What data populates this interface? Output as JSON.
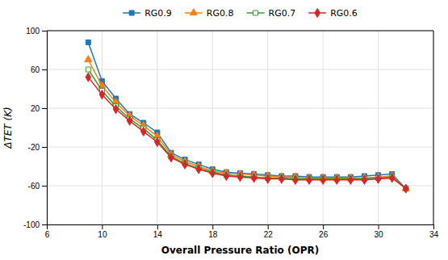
{
  "chart_data": {
    "type": "line",
    "x_label": "Overall Pressure Ratio (OPR)",
    "y_label": "ΔTET  (K)",
    "xlim": [
      6,
      34
    ],
    "ylim": [
      -100,
      100
    ],
    "xticks": [
      6,
      10,
      14,
      18,
      22,
      26,
      30,
      34
    ],
    "yticks": [
      -100,
      -60,
      -20,
      20,
      60,
      100
    ],
    "grid": true,
    "legend": "top",
    "x": [
      9,
      10,
      11,
      12,
      13,
      14,
      15,
      16,
      17,
      18,
      19,
      20,
      21,
      22,
      23,
      24,
      25,
      26,
      27,
      28,
      29,
      30,
      31,
      32
    ],
    "series": [
      {
        "name": "RG0.9",
        "marker": "square",
        "values": [
          88,
          48,
          30,
          14,
          5,
          -5,
          -26,
          -33,
          -38,
          -43,
          -46,
          -47,
          -48,
          -49,
          -50,
          -50,
          -51,
          -51,
          -51,
          -51,
          -50,
          -49,
          -48,
          -63
        ]
      },
      {
        "name": "RG0.8",
        "marker": "triangle",
        "values": [
          70,
          43,
          26,
          12,
          2,
          -9,
          -28,
          -35,
          -40,
          -45,
          -47,
          -48,
          -49,
          -50,
          -51,
          -51,
          -52,
          -52,
          -52,
          -52,
          -52,
          -51,
          -50,
          -63
        ]
      },
      {
        "name": "RG0.7",
        "marker": "square-open",
        "values": [
          60,
          38,
          22,
          9,
          -1,
          -13,
          -30,
          -37,
          -42,
          -46,
          -49,
          -50,
          -51,
          -52,
          -52,
          -53,
          -53,
          -53,
          -53,
          -53,
          -53,
          -52,
          -51,
          -63
        ]
      },
      {
        "name": "RG0.6",
        "marker": "diamond",
        "values": [
          52,
          34,
          19,
          7,
          -4,
          -15,
          -31,
          -38,
          -43,
          -47,
          -50,
          -51,
          -52,
          -53,
          -53,
          -54,
          -54,
          -54,
          -54,
          -54,
          -54,
          -53,
          -52,
          -63
        ]
      }
    ]
  }
}
